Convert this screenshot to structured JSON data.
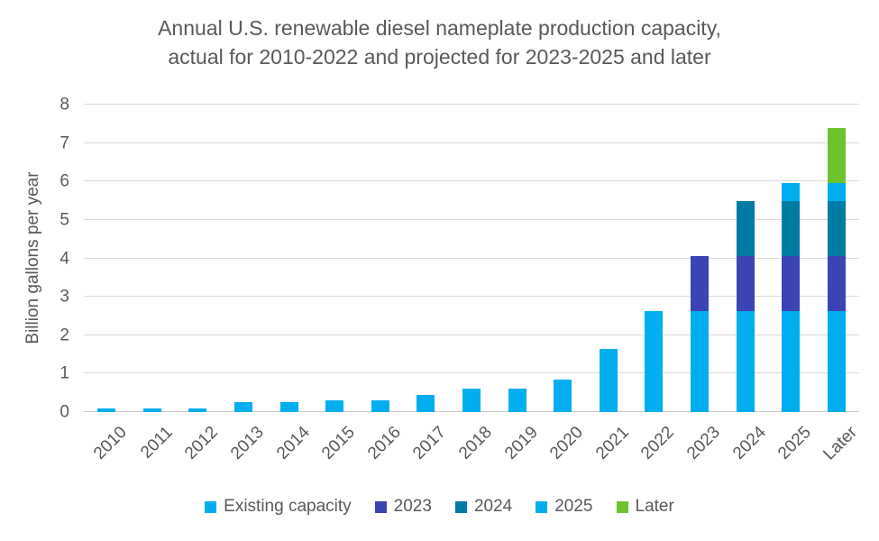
{
  "title": {
    "line1": "Annual U.S. renewable diesel nameplate production capacity,",
    "line2": "actual for 2010-2022 and projected for 2023-2025 and later"
  },
  "colors": {
    "existing_capacity": "#00AEEF",
    "addition_2023": "#3A44B5",
    "addition_2024": "#007BA3",
    "addition_2025": "#00AEEF",
    "addition_later": "#6EC22F",
    "text": "#595959",
    "gridline": "#D9D9D9"
  },
  "chart_data": {
    "type": "bar",
    "stacked": true,
    "title": "Annual U.S. renewable diesel nameplate production capacity, actual for 2010-2022 and projected for 2023-2025 and later",
    "xlabel": "",
    "ylabel": "Billion gallons per year",
    "ylim": [
      0,
      8
    ],
    "yticks": [
      0,
      1,
      2,
      3,
      4,
      5,
      6,
      7,
      8
    ],
    "grid": true,
    "legend_position": "bottom",
    "categories": [
      "2010",
      "2011",
      "2012",
      "2013",
      "2014",
      "2015",
      "2016",
      "2017",
      "2018",
      "2019",
      "2020",
      "2021",
      "2022",
      "2023",
      "2024",
      "2025",
      "Later"
    ],
    "series": [
      {
        "name": "Existing capacity",
        "color": "#00AEEF",
        "values": [
          0.1,
          0.1,
          0.1,
          0.26,
          0.26,
          0.3,
          0.3,
          0.44,
          0.6,
          0.6,
          0.85,
          1.65,
          2.62,
          2.62,
          2.62,
          2.62,
          2.62
        ]
      },
      {
        "name": "2023",
        "color": "#3A44B5",
        "values": [
          0,
          0,
          0,
          0,
          0,
          0,
          0,
          0,
          0,
          0,
          0,
          0,
          0,
          1.43,
          1.43,
          1.43,
          1.43
        ]
      },
      {
        "name": "2024",
        "color": "#007BA3",
        "values": [
          0,
          0,
          0,
          0,
          0,
          0,
          0,
          0,
          0,
          0,
          0,
          0,
          0,
          0,
          1.45,
          1.45,
          1.45
        ]
      },
      {
        "name": "2025",
        "color": "#00AEEF",
        "values": [
          0,
          0,
          0,
          0,
          0,
          0,
          0,
          0,
          0,
          0,
          0,
          0,
          0,
          0,
          0,
          0.45,
          0.45
        ]
      },
      {
        "name": "Later",
        "color": "#6EC22F",
        "values": [
          0,
          0,
          0,
          0,
          0,
          0,
          0,
          0,
          0,
          0,
          0,
          0,
          0,
          0,
          0,
          0,
          1.45
        ]
      }
    ]
  }
}
